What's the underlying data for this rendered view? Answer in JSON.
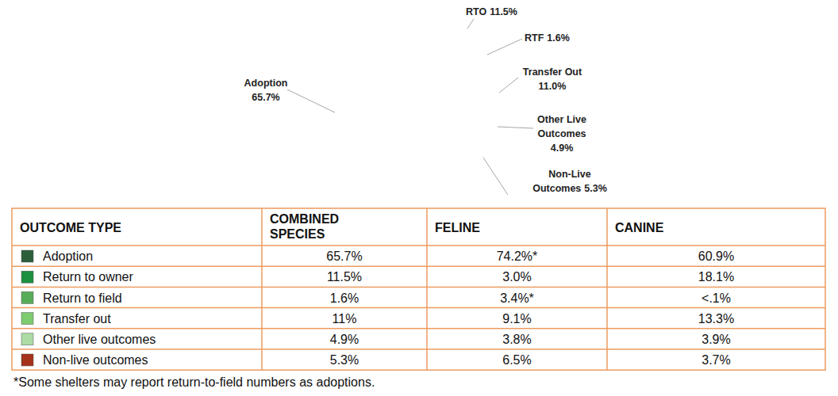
{
  "chart_data": {
    "type": "pie",
    "categories": [
      "Adoption",
      "RTO",
      "RTF",
      "Transfer Out",
      "Other Live Outcomes",
      "Non-Live Outcomes"
    ],
    "values": [
      65.7,
      11.5,
      1.6,
      11.0,
      4.9,
      5.3
    ],
    "value_labels": [
      "65.7%",
      "11.5%",
      "1.6%",
      "11.0%",
      "4.9%",
      "5.3%"
    ],
    "colors": [
      "#005f33",
      "#1e963f",
      "#4caf50",
      "#6fcd6c",
      "#a6dea0",
      "#a5321b"
    ],
    "data_labels": true
  },
  "table": {
    "columns": [
      "OUTCOME TYPE",
      "COMBINED SPECIES",
      "FELINE",
      "CANINE"
    ],
    "rows": [
      {
        "color": "#2c5e3b",
        "cells": [
          "Adoption",
          "65.7%",
          "74.2%*",
          "60.9%"
        ]
      },
      {
        "color": "#1e8f3e",
        "cells": [
          "Return to owner",
          "11.5%",
          "3.0%",
          "18.1%"
        ]
      },
      {
        "color": "#58ad58",
        "cells": [
          "Return to field",
          "1.6%",
          "3.4%*",
          "<.1%"
        ]
      },
      {
        "color": "#7dcc70",
        "cells": [
          "Transfer out",
          "11%",
          "9.1%",
          "13.3%"
        ]
      },
      {
        "color": "#acdca4",
        "cells": [
          "Other live outcomes",
          "4.9%",
          "3.8%",
          "3.9%"
        ]
      },
      {
        "color": "#a5321b",
        "cells": [
          "Non-live outcomes",
          "5.3%",
          "6.5%",
          "3.7%"
        ]
      }
    ]
  },
  "footnote": "*Some shelters may report return-to-field numbers as adoptions."
}
